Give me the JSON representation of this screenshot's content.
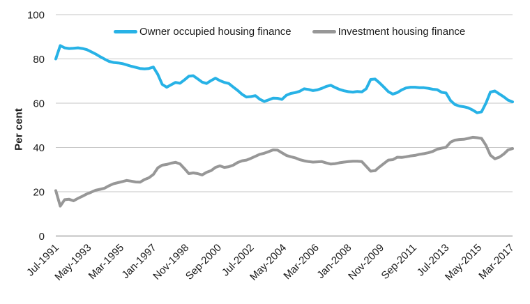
{
  "colors": {
    "owner_occupied_line": "#27b2e6",
    "investment_line": "#979797",
    "gridline": "#c6c6c6",
    "axis_line": "#a6a6a6",
    "text": "#1a1a1a",
    "background": "#ffffff"
  },
  "chart_data": {
    "type": "line",
    "title": "",
    "xlabel": "",
    "ylabel": "Per cent",
    "ylim": [
      0,
      100
    ],
    "y_ticks": [
      0,
      20,
      40,
      60,
      80,
      100
    ],
    "grid": "horizontal",
    "legend_position": "top-center",
    "x_unit": "months since Jul-1991",
    "x_total_months": 309,
    "x_value_interval_months": 3,
    "x_tick_interval_months": 22,
    "x_tick_labels": [
      "Jul-1991",
      "May-1993",
      "Mar-1995",
      "Jan-1997",
      "Nov-1998",
      "Sep-2000",
      "Jul-2002",
      "May-2004",
      "Mar-2006",
      "Jan-2008",
      "Nov-2009",
      "Sep-2011",
      "Jul-2013",
      "May-2015",
      "Mar-2017"
    ],
    "grid_color": "#c6c6c6",
    "axis_color": "#a6a6a6",
    "text_color": "#1a1a1a",
    "series": [
      {
        "name": "Owner occupied housing finance",
        "color": "#27b2e6",
        "values": [
          80.0,
          86.0,
          85.0,
          84.7,
          84.8,
          85.0,
          84.7,
          84.2,
          83.2,
          82.2,
          81.0,
          79.9,
          78.9,
          78.4,
          78.2,
          77.9,
          77.3,
          76.7,
          76.2,
          75.7,
          75.5,
          75.7,
          76.3,
          73.0,
          68.5,
          67.2,
          68.3,
          69.4,
          69.0,
          70.5,
          72.2,
          72.4,
          71.0,
          69.5,
          68.9,
          70.2,
          71.3,
          70.2,
          69.4,
          68.9,
          67.3,
          65.8,
          64.0,
          62.8,
          63.0,
          63.4,
          61.8,
          60.8,
          61.5,
          62.3,
          62.2,
          61.7,
          63.6,
          64.4,
          64.8,
          65.4,
          66.5,
          66.2,
          65.7,
          66.0,
          66.7,
          67.6,
          68.1,
          67.1,
          66.2,
          65.6,
          65.2,
          65.0,
          65.3,
          65.1,
          66.5,
          70.7,
          70.9,
          69.2,
          67.2,
          65.2,
          64.1,
          64.8,
          66.0,
          66.9,
          67.2,
          67.2,
          67.0,
          67.0,
          66.7,
          66.3,
          66.1,
          64.9,
          64.6,
          61.2,
          59.4,
          58.7,
          58.4,
          57.9,
          56.9,
          55.7,
          56.1,
          60.0,
          65.0,
          65.5,
          64.2,
          62.9,
          61.4,
          60.6
        ]
      },
      {
        "name": "Investment housing finance",
        "color": "#979797",
        "values": [
          20.5,
          13.5,
          16.4,
          16.6,
          15.9,
          17.0,
          18.0,
          19.0,
          19.8,
          20.7,
          21.1,
          21.6,
          22.7,
          23.6,
          24.1,
          24.6,
          25.1,
          24.8,
          24.4,
          24.3,
          25.5,
          26.3,
          27.8,
          30.8,
          32.0,
          32.3,
          32.9,
          33.3,
          32.6,
          30.5,
          28.2,
          28.5,
          28.2,
          27.6,
          28.8,
          29.5,
          31.0,
          31.7,
          31.0,
          31.3,
          32.0,
          33.2,
          34.0,
          34.3,
          35.1,
          36.0,
          36.9,
          37.4,
          38.1,
          38.9,
          38.8,
          37.6,
          36.4,
          35.8,
          35.3,
          34.5,
          34.0,
          33.6,
          33.4,
          33.5,
          33.6,
          33.0,
          32.5,
          32.7,
          33.1,
          33.4,
          33.6,
          33.8,
          33.8,
          33.6,
          31.5,
          29.3,
          29.5,
          31.2,
          32.8,
          34.3,
          34.5,
          35.6,
          35.5,
          35.8,
          36.2,
          36.4,
          36.9,
          37.2,
          37.6,
          38.2,
          39.2,
          39.7,
          40.1,
          42.4,
          43.3,
          43.6,
          43.7,
          44.1,
          44.6,
          44.4,
          44.1,
          41.0,
          36.5,
          34.9,
          35.6,
          37.0,
          38.9,
          39.5
        ]
      }
    ]
  }
}
